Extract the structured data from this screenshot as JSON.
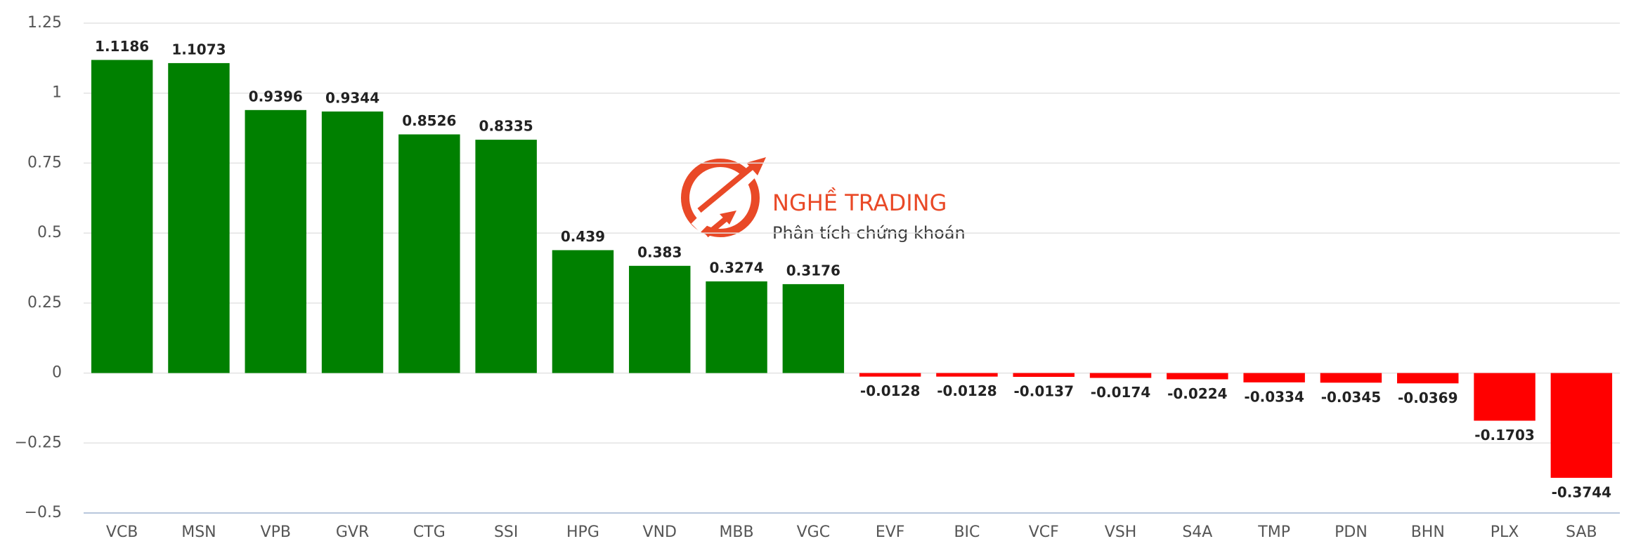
{
  "chart_data": {
    "type": "bar",
    "categories": [
      "VCB",
      "MSN",
      "VPB",
      "GVR",
      "CTG",
      "SSI",
      "HPG",
      "VND",
      "MBB",
      "VGC",
      "EVF",
      "BIC",
      "VCF",
      "VSH",
      "S4A",
      "TMP",
      "PDN",
      "BHN",
      "PLX",
      "SAB"
    ],
    "values": [
      1.1186,
      1.1073,
      0.9396,
      0.9344,
      0.8526,
      0.8335,
      0.439,
      0.383,
      0.3274,
      0.3176,
      -0.0128,
      -0.0128,
      -0.0137,
      -0.0174,
      -0.0224,
      -0.0334,
      -0.0345,
      -0.0369,
      -0.1703,
      -0.3744
    ],
    "positive_color": "#008000",
    "negative_color": "#ff0000",
    "ylim": [
      -0.5,
      1.25
    ],
    "yticks": [
      {
        "value": -0.5,
        "label": "−0.5"
      },
      {
        "value": -0.25,
        "label": "−0.25"
      },
      0,
      0.25,
      0.5,
      0.75,
      1,
      1.25
    ],
    "grid": true
  },
  "watermark": {
    "title": "NGHỀ TRADING",
    "subtitle": "Phân tích chứng khoán"
  }
}
